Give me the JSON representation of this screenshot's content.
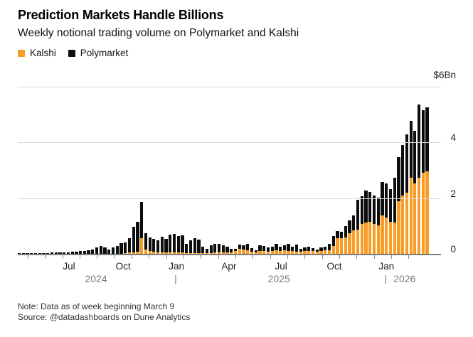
{
  "header": {
    "title": "Prediction Markets Handle Billions",
    "subtitle": "Weekly notional trading volume on Polymarket and Kalshi"
  },
  "legend": [
    {
      "label": "Kalshi",
      "color": "#f79c25"
    },
    {
      "label": "Polymarket",
      "color": "#0d0d0d"
    }
  ],
  "footer": {
    "note": "Note: Data as of week beginning March 9",
    "source": "Source: @datadashboards on Dune Analytics"
  },
  "colors": {
    "kalshi": "#f79c25",
    "polymarket": "#0d0d0d",
    "gridline": "#dcdcdc",
    "axis": "#7e7e7e",
    "year_text": "#7b7b7b"
  },
  "chart_data": {
    "type": "bar",
    "stacked": true,
    "unit": "$Bn",
    "frequency": "weekly",
    "x_start_week": "2024-04-08",
    "x_end_week": "2026-03-09",
    "title": "Prediction Markets Handle Billions",
    "subtitle": "Weekly notional trading volume on Polymarket and Kalshi",
    "ylim": [
      0,
      6
    ],
    "grid": true,
    "legend_position": "top-left",
    "y_ticks": [
      {
        "value": 6,
        "label": "$6Bn"
      },
      {
        "value": 4,
        "label": "4"
      },
      {
        "value": 2,
        "label": "2"
      },
      {
        "value": 0,
        "label": "0"
      }
    ],
    "x_month_labels": [
      {
        "label": "Jul",
        "pct": 12.1
      },
      {
        "label": "Oct",
        "pct": 24.9
      },
      {
        "label": "Jan",
        "pct": 37.5
      },
      {
        "label": "Apr",
        "pct": 49.9
      },
      {
        "label": "Jul",
        "pct": 62.2
      },
      {
        "label": "Oct",
        "pct": 74.8
      },
      {
        "label": "Jan",
        "pct": 87.1
      }
    ],
    "x_year_labels": [
      {
        "label": "2024",
        "pct": 18.5
      },
      {
        "label": "|",
        "pct": 37.3
      },
      {
        "label": "2025",
        "pct": 61.7
      },
      {
        "label": "|",
        "pct": 86.9
      },
      {
        "label": "2026",
        "pct": 91.4
      }
    ],
    "x_tick_pcts": [
      2.35,
      6.44,
      10.53,
      14.62,
      18.71,
      22.8,
      26.89,
      30.98,
      35.07,
      39.16,
      43.25,
      47.34,
      51.43,
      55.52,
      59.61,
      63.7,
      67.79,
      71.88,
      75.97,
      80.06,
      84.15,
      88.24,
      92.33
    ],
    "series": [
      {
        "name": "Kalshi",
        "color": "#f79c25",
        "values": [
          0,
          0,
          0,
          0,
          0,
          0,
          0,
          0,
          0,
          0,
          0,
          0,
          0,
          0,
          0,
          0,
          0,
          0,
          0,
          0,
          0,
          0,
          0,
          0,
          0,
          0,
          0.02,
          0.04,
          0.06,
          0.08,
          0.57,
          0.15,
          0.1,
          0.07,
          0.05,
          0.05,
          0.04,
          0.05,
          0.05,
          0.04,
          0.04,
          0.03,
          0.03,
          0.03,
          0.03,
          0.02,
          0.02,
          0.03,
          0.04,
          0.05,
          0.05,
          0.04,
          0.04,
          0.1,
          0.17,
          0.15,
          0.12,
          0.08,
          0.05,
          0.1,
          0.1,
          0.08,
          0.09,
          0.12,
          0.1,
          0.13,
          0.1,
          0.1,
          0.08,
          0.08,
          0.1,
          0.1,
          0.1,
          0.08,
          0.1,
          0.12,
          0.12,
          0.28,
          0.55,
          0.55,
          0.6,
          0.75,
          0.85,
          0.86,
          1.08,
          1.12,
          1.14,
          1.08,
          1.03,
          1.38,
          1.31,
          1.16,
          1.12,
          1.9,
          2.1,
          2.19,
          2.74,
          2.52,
          2.72,
          2.92,
          2.96
        ]
      },
      {
        "name": "Polymarket",
        "color": "#0d0d0d",
        "values": [
          0.02,
          0.02,
          0.03,
          0.02,
          0.03,
          0.02,
          0.03,
          0.03,
          0.04,
          0.04,
          0.05,
          0.05,
          0.06,
          0.07,
          0.08,
          0.09,
          0.11,
          0.13,
          0.16,
          0.24,
          0.27,
          0.22,
          0.16,
          0.22,
          0.28,
          0.38,
          0.4,
          0.51,
          0.91,
          1.07,
          1.3,
          0.6,
          0.5,
          0.47,
          0.44,
          0.57,
          0.5,
          0.64,
          0.67,
          0.6,
          0.63,
          0.32,
          0.45,
          0.53,
          0.47,
          0.24,
          0.16,
          0.28,
          0.31,
          0.32,
          0.26,
          0.21,
          0.14,
          0.08,
          0.15,
          0.16,
          0.23,
          0.12,
          0.09,
          0.21,
          0.17,
          0.14,
          0.17,
          0.25,
          0.15,
          0.18,
          0.25,
          0.16,
          0.25,
          0.1,
          0.12,
          0.15,
          0.1,
          0.08,
          0.12,
          0.14,
          0.23,
          0.37,
          0.27,
          0.23,
          0.4,
          0.45,
          0.53,
          1.07,
          0.98,
          1.15,
          1.07,
          1.02,
          0.99,
          1.19,
          1.22,
          1.16,
          1.62,
          1.58,
          1.8,
          2.09,
          2.03,
          1.91,
          2.65,
          2.23,
          2.29
        ]
      }
    ]
  }
}
